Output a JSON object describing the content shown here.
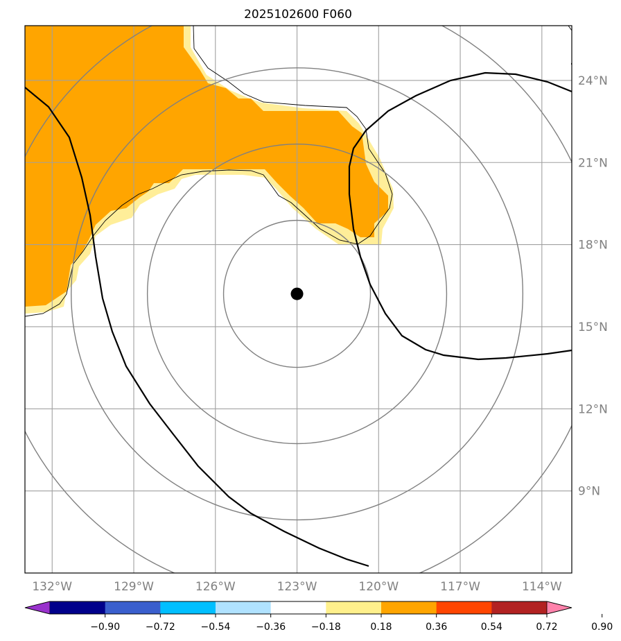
{
  "title": "2025102600 F060",
  "map": {
    "lon_min": -133,
    "lon_max": -112.9,
    "lat_min": 6,
    "lat_max": 26,
    "center_marker": {
      "lon": -123,
      "lat": 16.2
    },
    "lon_gridlines": [
      -132,
      -129,
      -126,
      -123,
      -120,
      -117,
      -114
    ],
    "lat_gridlines": [
      9,
      12,
      15,
      18,
      21,
      24
    ],
    "lon_tick_labels": [
      "132°W",
      "129°W",
      "126°W",
      "123°W",
      "120°W",
      "117°W",
      "114°W"
    ],
    "lat_tick_labels": [
      "9°N",
      "12°N",
      "15°N",
      "18°N",
      "21°N",
      "24°N"
    ],
    "range_ring_radii_deg": [
      2.7,
      5.5,
      8.3,
      11.2
    ],
    "colors": {
      "shade_strong": "#ffa500",
      "shade_weak": "#ffee99",
      "gridline": "#a0a0a0",
      "range_ring": "#808080",
      "contour": "#000000"
    }
  },
  "colorbar": {
    "colors": [
      "#9932cc",
      "#00008b",
      "#3a5fcd",
      "#00bfff",
      "#b0e2ff",
      "#ffffff",
      "#fff08c",
      "#ffa500",
      "#ff4500",
      "#b22222",
      "#ff82ab"
    ],
    "labels": [
      "−0.90",
      "−0.72",
      "−0.54",
      "−0.36",
      "−0.18",
      "0.18",
      "0.36",
      "0.54",
      "0.72",
      "0.90"
    ]
  }
}
